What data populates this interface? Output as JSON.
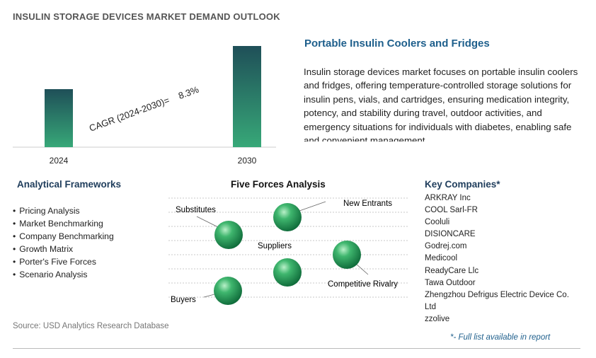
{
  "page_title": "INSULIN STORAGE DEVICES MARKET DEMAND OUTLOOK",
  "chart_data": {
    "type": "bar",
    "categories": [
      "2024",
      "2030"
    ],
    "values": [
      82,
      143
    ],
    "ylim": [
      0,
      150
    ],
    "grid": false,
    "annotation": "CAGR (2024-2030)=    8.3%"
  },
  "section_title": "Portable Insulin Coolers and Fridges",
  "description": "Insulin storage devices market focuses on portable insulin coolers and fridges, offering temperature-controlled storage solutions for insulin pens, vials, and cartridges, ensuring medication integrity, potency, and stability during travel, outdoor activities, and emergency situations for individuals with diabetes, enabling safe and convenient management.",
  "analytical_frameworks": {
    "title": "Analytical Frameworks",
    "items": [
      "Pricing Analysis",
      "Market Benchmarking",
      "Company Benchmarking",
      "Growth Matrix",
      "Porter's Five Forces",
      "Scenario Analysis"
    ]
  },
  "five_forces": {
    "title": "Five Forces Analysis",
    "labels": {
      "substitutes": "Substitutes",
      "new_entrants": "New Entrants",
      "suppliers": "Suppliers",
      "competitive_rivalry": "Competitive Rivalry",
      "buyers": "Buyers"
    }
  },
  "key_companies": {
    "title": "Key Companies*",
    "items": [
      "ARKRAY Inc",
      "COOL Sarl-FR",
      "Cooluli",
      "DISIONCARE",
      "Godrej.com",
      "Medicool",
      "ReadyCare Llc",
      "Tawa Outdoor",
      "Zhengzhou Defrigus Electric Device Co.",
      "Ltd",
      "zzolive"
    ]
  },
  "source": "Source: USD Analytics Research Database",
  "footnote": "*- Full list available in report",
  "colors": {
    "bar_top": "#1f4f58",
    "bar_bottom": "#37a878",
    "sphere_light": "#b8f0c8",
    "sphere_dark": "#0f6b3a",
    "title_blue": "#1e5f8c"
  }
}
